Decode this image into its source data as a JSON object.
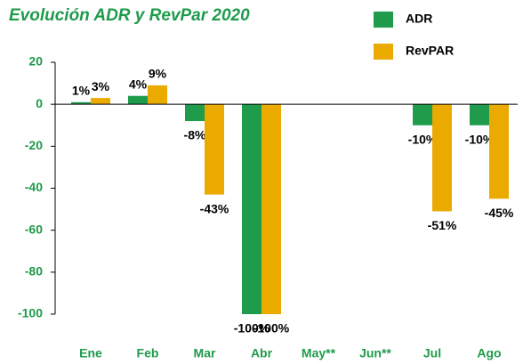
{
  "chart_data": {
    "type": "bar",
    "title": "Evolución ADR y RevPar 2020",
    "categories": [
      "Ene",
      "Feb",
      "Mar",
      "Abr",
      "May**",
      "Jun**",
      "Jul",
      "Ago"
    ],
    "series": [
      {
        "name": "ADR",
        "color": "#1e9b4b",
        "values": [
          1,
          4,
          -8,
          -100,
          null,
          null,
          -10,
          -10
        ],
        "value_labels": [
          "1%",
          "4%",
          "-8%",
          "-100%",
          null,
          null,
          "-10%",
          "-10%"
        ]
      },
      {
        "name": "RevPAR",
        "color": "#eaaa00",
        "values": [
          3,
          9,
          -43,
          -100,
          null,
          null,
          -51,
          -45
        ],
        "value_labels": [
          "3%",
          "9%",
          "-43%",
          "-100%",
          null,
          null,
          "-51%",
          "-45%"
        ]
      }
    ],
    "ylim": [
      -100,
      20
    ],
    "yticks": [
      -100,
      -80,
      -60,
      -40,
      -20,
      0,
      20
    ],
    "grid": false,
    "legend": "top-right"
  }
}
